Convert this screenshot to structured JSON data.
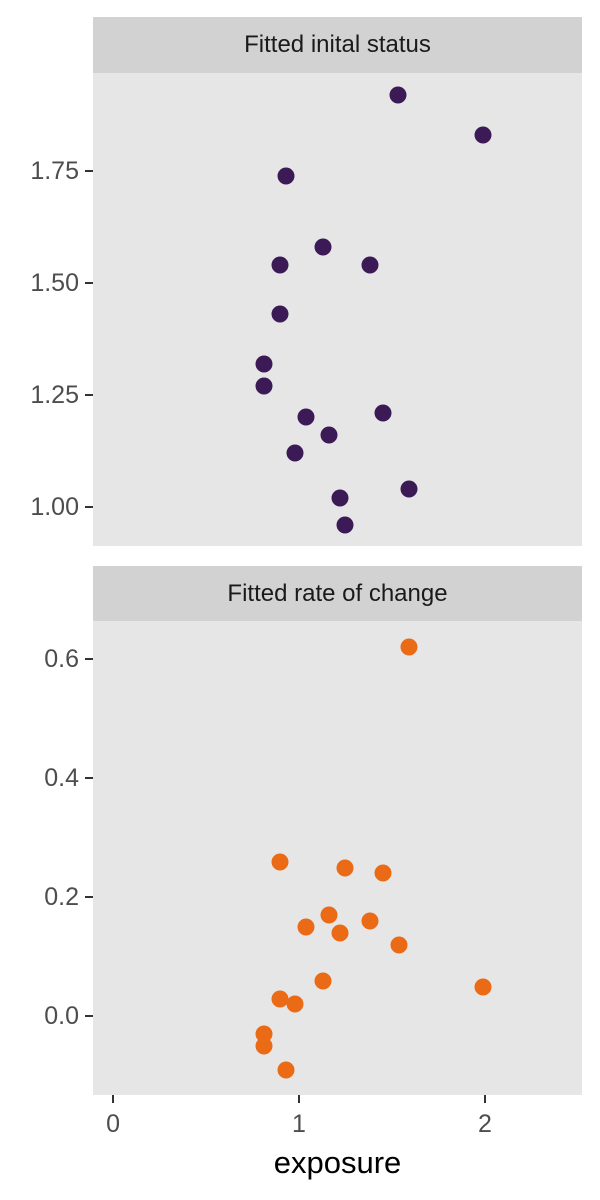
{
  "chart_data": {
    "type": "scatter",
    "grid": false,
    "legend": "none",
    "x_axis": {
      "label": "exposure",
      "tick_labels": [
        "0",
        "1",
        "2"
      ],
      "tick_values": [
        0,
        1,
        2
      ],
      "range": [
        -0.108,
        2.522
      ]
    },
    "facets": [
      {
        "title": "Fitted inital status",
        "point_color": "#3c1a56",
        "y_axis": {
          "tick_labels": [
            "1.00",
            "1.25",
            "1.50",
            "1.75"
          ],
          "tick_values": [
            1.0,
            1.25,
            1.5,
            1.75
          ],
          "range": [
            0.913,
            1.969
          ]
        },
        "points": [
          [
            0.81,
            1.32
          ],
          [
            0.81,
            1.27
          ],
          [
            0.9,
            1.54
          ],
          [
            0.9,
            1.43
          ],
          [
            0.93,
            1.74
          ],
          [
            0.98,
            1.12
          ],
          [
            1.04,
            1.2
          ],
          [
            1.13,
            1.58
          ],
          [
            1.16,
            1.16
          ],
          [
            1.22,
            1.02
          ],
          [
            1.25,
            0.96
          ],
          [
            1.38,
            1.54
          ],
          [
            1.45,
            1.21
          ],
          [
            1.53,
            1.92
          ],
          [
            1.59,
            1.04
          ],
          [
            1.99,
            1.83
          ]
        ]
      },
      {
        "title": "Fitted rate of change",
        "point_color": "#eb6a15",
        "y_axis": {
          "tick_labels": [
            "0.0",
            "0.2",
            "0.4",
            "0.6"
          ],
          "tick_values": [
            0.0,
            0.2,
            0.4,
            0.6
          ],
          "range": [
            -0.132,
            0.664
          ]
        },
        "points": [
          [
            0.81,
            -0.03
          ],
          [
            0.81,
            -0.05
          ],
          [
            0.9,
            0.26
          ],
          [
            0.9,
            0.03
          ],
          [
            0.93,
            -0.09
          ],
          [
            0.98,
            0.02
          ],
          [
            1.04,
            0.15
          ],
          [
            1.13,
            0.06
          ],
          [
            1.16,
            0.17
          ],
          [
            1.22,
            0.14
          ],
          [
            1.25,
            0.25
          ],
          [
            1.38,
            0.16
          ],
          [
            1.45,
            0.24
          ],
          [
            1.54,
            0.12
          ],
          [
            1.59,
            0.62
          ],
          [
            1.99,
            0.05
          ]
        ]
      }
    ],
    "styles": {
      "figure_background": "#ffffff",
      "panel_background": "#e6e6e6",
      "strip_background": "#d2d2d2",
      "strip_text_color": "#1a1a1a",
      "tick_mark_color": "#333333",
      "tick_label_color": "#4d4d4d",
      "axis_title_color": "#000000"
    }
  }
}
